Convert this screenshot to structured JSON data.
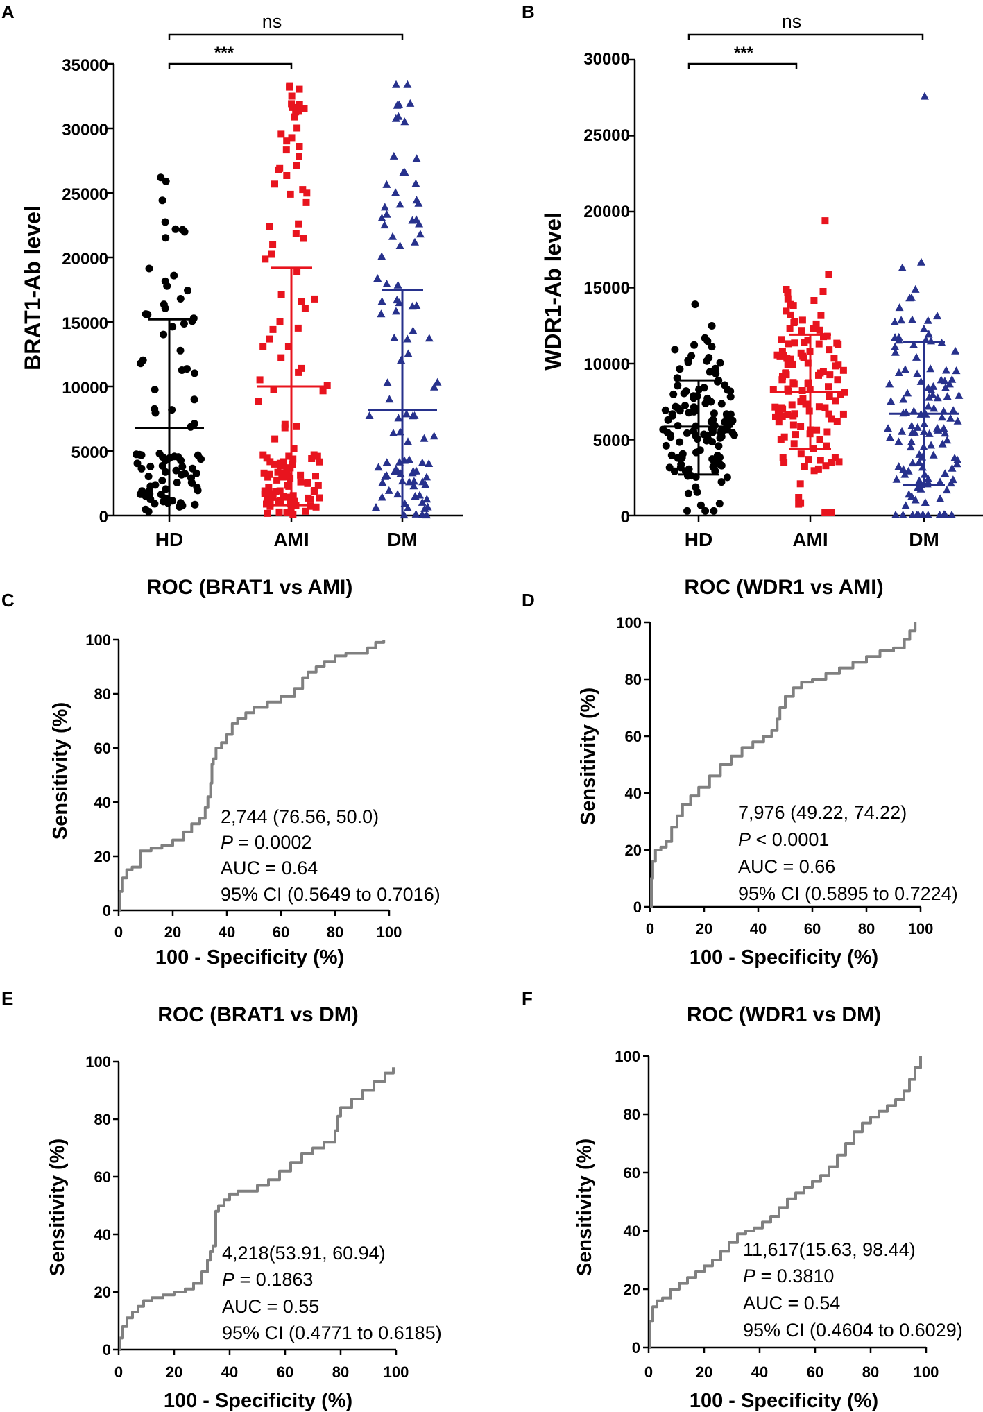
{
  "panel_letters": [
    "A",
    "B",
    "C",
    "D",
    "E",
    "F"
  ],
  "chart_data": [
    {
      "type": "scatter",
      "panel": "A",
      "title": "",
      "ylabel": "BRAT1-Ab level",
      "xlabel": "",
      "categories": [
        "HD",
        "AMI",
        "DM"
      ],
      "ylim": [
        0,
        35000
      ],
      "yticks": [
        "0",
        "5000",
        "10000",
        "15000",
        "20000",
        "25000",
        "30000",
        "35000"
      ],
      "series": [
        {
          "name": "HD",
          "color": "#000000",
          "marker": "circle",
          "mean": 6800,
          "sd_upper": 15200,
          "sd_lower": 0,
          "n": 90,
          "ymin": 300,
          "ymax": 26200
        },
        {
          "name": "AMI",
          "color": "#e8141e",
          "marker": "square",
          "mean": 10000,
          "sd_upper": 19200,
          "sd_lower": 800,
          "n": 130,
          "ymin": 100,
          "ymax": 33300
        },
        {
          "name": "DM",
          "color": "#27318c",
          "marker": "triangle",
          "mean": 8200,
          "sd_upper": 17500,
          "sd_lower": 0,
          "n": 100,
          "ymin": 50,
          "ymax": 33400
        }
      ],
      "annotations": [
        {
          "text": "ns",
          "from": "HD",
          "to": "DM"
        },
        {
          "text": "***",
          "from": "HD",
          "to": "AMI"
        }
      ]
    },
    {
      "type": "scatter",
      "panel": "B",
      "title": "",
      "ylabel": "WDR1-Ab level",
      "xlabel": "",
      "categories": [
        "HD",
        "AMI",
        "DM"
      ],
      "ylim": [
        0,
        30000
      ],
      "yticks": [
        "0",
        "5000",
        "10000",
        "15000",
        "20000",
        "25000",
        "30000"
      ],
      "series": [
        {
          "name": "HD",
          "color": "#000000",
          "marker": "circle",
          "mean": 5850,
          "sd_upper": 8900,
          "sd_lower": 2700,
          "n": 130,
          "ymin": 300,
          "ymax": 13900
        },
        {
          "name": "AMI",
          "color": "#e8141e",
          "marker": "square",
          "mean": 8150,
          "sd_upper": 11900,
          "sd_lower": 4400,
          "n": 130,
          "ymin": 200,
          "ymax": 19400
        },
        {
          "name": "DM",
          "color": "#27318c",
          "marker": "triangle",
          "mean": 6700,
          "sd_upper": 11400,
          "sd_lower": 2000,
          "n": 130,
          "ymin": 50,
          "ymax": 27600
        }
      ],
      "annotations": [
        {
          "text": "ns",
          "from": "HD",
          "to": "DM"
        },
        {
          "text": "***",
          "from": "HD",
          "to": "AMI"
        }
      ]
    },
    {
      "type": "line",
      "panel": "C",
      "title": "ROC (BRAT1 vs AMI)",
      "xlabel": "100 - Specificity (%)",
      "ylabel": "Sensitivity (%)",
      "xlim": [
        0,
        100
      ],
      "ylim": [
        0,
        100
      ],
      "xticks": [
        "0",
        "20",
        "40",
        "60",
        "80",
        "100"
      ],
      "yticks": [
        "0",
        "20",
        "40",
        "60",
        "80",
        "100"
      ],
      "series": [
        {
          "name": "ROC",
          "color": "#808080",
          "x": [
            0,
            0.5,
            1.5,
            3,
            5,
            8,
            8,
            12,
            16,
            20,
            24,
            27,
            30,
            32,
            33,
            34,
            34.5,
            35,
            36,
            38,
            40,
            42,
            44,
            47,
            50,
            55,
            60,
            65,
            68,
            70,
            73,
            76,
            80,
            84,
            88,
            90,
            92,
            95,
            98
          ],
          "y": [
            0,
            7,
            12,
            15,
            16,
            17,
            22,
            23,
            24,
            26,
            29,
            32,
            34,
            38,
            42,
            47,
            54,
            56,
            60,
            62,
            65,
            69,
            71,
            73,
            75,
            77,
            79,
            82,
            86,
            88,
            90,
            92,
            94,
            95,
            95,
            95,
            97,
            99,
            100
          ]
        }
      ],
      "annotation_lines": [
        "2,744 (76.56, 50.0)",
        "P",
        " = 0.0002",
        "AUC = 0.64",
        "95% CI (0.5649 to 0.7016)"
      ]
    },
    {
      "type": "line",
      "panel": "D",
      "title": "ROC (WDR1 vs AMI)",
      "xlabel": "100 - Specificity (%)",
      "ylabel": "Sensitivity (%)",
      "xlim": [
        0,
        100
      ],
      "ylim": [
        0,
        100
      ],
      "xticks": [
        "0",
        "20",
        "40",
        "60",
        "80",
        "100"
      ],
      "yticks": [
        "0",
        "20",
        "40",
        "60",
        "80",
        "100"
      ],
      "series": [
        {
          "name": "ROC",
          "color": "#808080",
          "x": [
            0,
            0.5,
            1,
            2,
            4,
            6,
            8,
            10,
            12,
            15,
            18,
            22,
            26,
            30,
            34,
            38,
            42,
            45,
            47,
            48,
            50,
            53,
            56,
            60,
            65,
            70,
            75,
            80,
            85,
            90,
            94,
            96,
            98
          ],
          "y": [
            0,
            10,
            16,
            20,
            21,
            23,
            28,
            32,
            36,
            39,
            42,
            46,
            50,
            53,
            56,
            58,
            60,
            62,
            66,
            70,
            74,
            77,
            79,
            80,
            82,
            84,
            86,
            88,
            90,
            91,
            94,
            97,
            100
          ]
        }
      ],
      "annotation_lines": [
        "7,976 (49.22, 74.22)",
        "P",
        " < 0.0001",
        "AUC = 0.66",
        "95% CI (0.5895 to 0.7224)"
      ]
    },
    {
      "type": "line",
      "panel": "E",
      "title": "ROC (BRAT1 vs DM)",
      "xlabel": "100 - Specificity (%)",
      "ylabel": "Sensitivity (%)",
      "xlim": [
        0,
        100
      ],
      "ylim": [
        0,
        100
      ],
      "xticks": [
        "0",
        "20",
        "40",
        "60",
        "80",
        "100"
      ],
      "yticks": [
        "0",
        "20",
        "40",
        "60",
        "80",
        "100"
      ],
      "series": [
        {
          "name": "ROC",
          "color": "#808080",
          "x": [
            0,
            0.5,
            1.5,
            3,
            5,
            7,
            9,
            12,
            16,
            20,
            24,
            27,
            30,
            32,
            33,
            34,
            35,
            35,
            36,
            38,
            40,
            43,
            46,
            50,
            54,
            58,
            62,
            66,
            70,
            74,
            78,
            79,
            80,
            84,
            88,
            92,
            96,
            99
          ],
          "y": [
            0,
            4,
            8,
            11,
            13,
            15,
            17,
            18,
            19,
            20,
            21,
            23,
            27,
            31,
            34,
            36,
            38,
            48,
            50,
            52,
            54,
            55,
            55,
            57,
            59,
            62,
            65,
            68,
            70,
            72,
            76,
            81,
            84,
            87,
            90,
            93,
            96,
            98
          ]
        }
      ],
      "annotation_lines": [
        "4,218(53.91, 60.94)",
        "P",
        " = 0.1863",
        "AUC = 0.55",
        "95% CI (0.4771 to 0.6185)"
      ]
    },
    {
      "type": "line",
      "panel": "F",
      "title": "ROC (WDR1 vs DM)",
      "xlabel": "100 - Specificity (%)",
      "ylabel": "Sensitivity (%)",
      "xlim": [
        0,
        100
      ],
      "ylim": [
        0,
        100
      ],
      "xticks": [
        "0",
        "20",
        "40",
        "60",
        "80",
        "100"
      ],
      "yticks": [
        "0",
        "20",
        "40",
        "60",
        "80",
        "100"
      ],
      "series": [
        {
          "name": "ROC",
          "color": "#808080",
          "x": [
            0,
            0.5,
            1.5,
            3,
            5,
            8,
            11,
            14,
            17,
            20,
            23,
            26,
            29,
            32,
            35,
            38,
            41,
            44,
            47,
            50,
            53,
            56,
            59,
            62,
            65,
            68,
            71,
            74,
            77,
            80,
            83,
            86,
            89,
            92,
            94,
            96,
            98
          ],
          "y": [
            0,
            9,
            14,
            16,
            17,
            20,
            22,
            24,
            26,
            28,
            30,
            33,
            36,
            39,
            40,
            41,
            43,
            45,
            48,
            51,
            53,
            55,
            57,
            59,
            62,
            66,
            70,
            74,
            77,
            79,
            81,
            83,
            85,
            88,
            92,
            96,
            100
          ]
        }
      ],
      "annotation_lines": [
        "11,617(15.63, 98.44)",
        "P",
        " = 0.3810",
        "AUC = 0.54",
        "95% CI (0.4604 to 0.6029)"
      ]
    }
  ]
}
